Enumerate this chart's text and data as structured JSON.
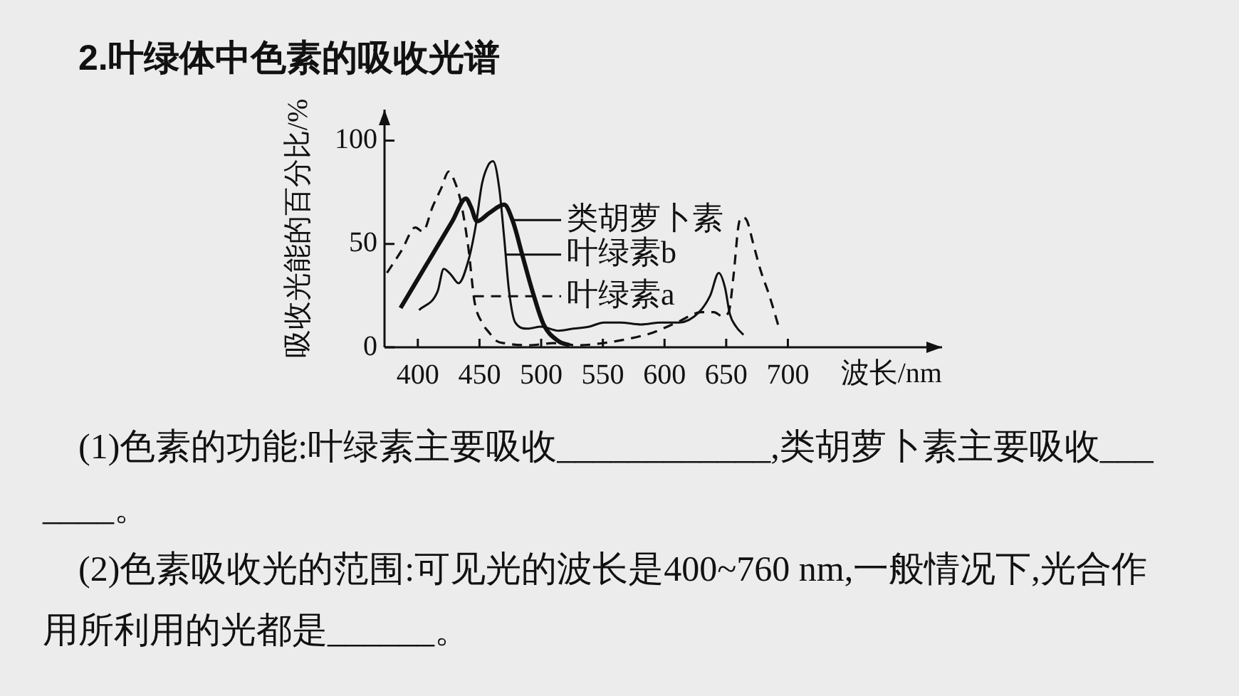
{
  "chart_data": {
    "type": "line",
    "title": "2.叶绿体中色素的吸收光谱",
    "xlabel": "波长/nm",
    "ylabel": "吸收光能的百分比/%",
    "xlim": [
      373,
      825
    ],
    "ylim": [
      0,
      115
    ],
    "xticks": [
      400,
      450,
      500,
      550,
      600,
      650,
      700
    ],
    "yticks": [
      0,
      50,
      100
    ],
    "grid": false,
    "marker": "none",
    "legend": "center",
    "series": [
      {
        "name": "类胡萝卜素",
        "color": "#111111",
        "x": [
          386,
          397,
          408,
          418,
          428,
          439,
          443,
          448,
          458,
          470,
          477,
          485,
          493,
          502,
          514,
          523
        ],
        "values": [
          19,
          30,
          41,
          51,
          61,
          72,
          68,
          61,
          65,
          69,
          61,
          44,
          27,
          11,
          3,
          1
        ]
      },
      {
        "name": "叶绿素b",
        "color": "#111111",
        "x": [
          401,
          416,
          421,
          427,
          433,
          441,
          447,
          452,
          457,
          461,
          466,
          470,
          474,
          479,
          489,
          500,
          514,
          526,
          539,
          551,
          564,
          581,
          597,
          612,
          628,
          637,
          644,
          649,
          653,
          658,
          664
        ],
        "values": [
          18,
          27,
          38,
          35,
          31,
          42,
          59,
          79,
          88,
          90,
          77,
          53,
          27,
          12,
          9,
          10,
          8,
          9,
          10,
          12,
          12,
          11,
          12,
          12,
          17,
          25,
          36,
          29,
          16,
          10,
          6
        ]
      },
      {
        "name": "叶绿素a",
        "color": "#111111",
        "line_style": "dashed",
        "x": [
          375,
          387,
          398,
          404,
          412,
          419,
          425,
          430,
          435,
          441,
          446,
          452,
          458,
          464,
          470,
          490,
          510,
          530,
          550,
          570,
          590,
          610,
          630,
          640,
          647,
          652,
          656,
          660,
          663,
          667,
          672,
          678,
          685,
          693
        ],
        "values": [
          36,
          47,
          58,
          56,
          68,
          77,
          85,
          80,
          70,
          48,
          22,
          12,
          7,
          3,
          2,
          1,
          2,
          1,
          2,
          4,
          7,
          12,
          17,
          17,
          15,
          17,
          35,
          59,
          63,
          61,
          50,
          37,
          25,
          9
        ]
      }
    ],
    "annotations": [
      "(1)色素的功能:叶绿素主要吸收____________,类胡萝卜素主要吸收_______。",
      "(2)色素吸收光的范围:可见光的波长是400~760 nm,一般情况下,光合作用所利用的光都是______。"
    ]
  }
}
